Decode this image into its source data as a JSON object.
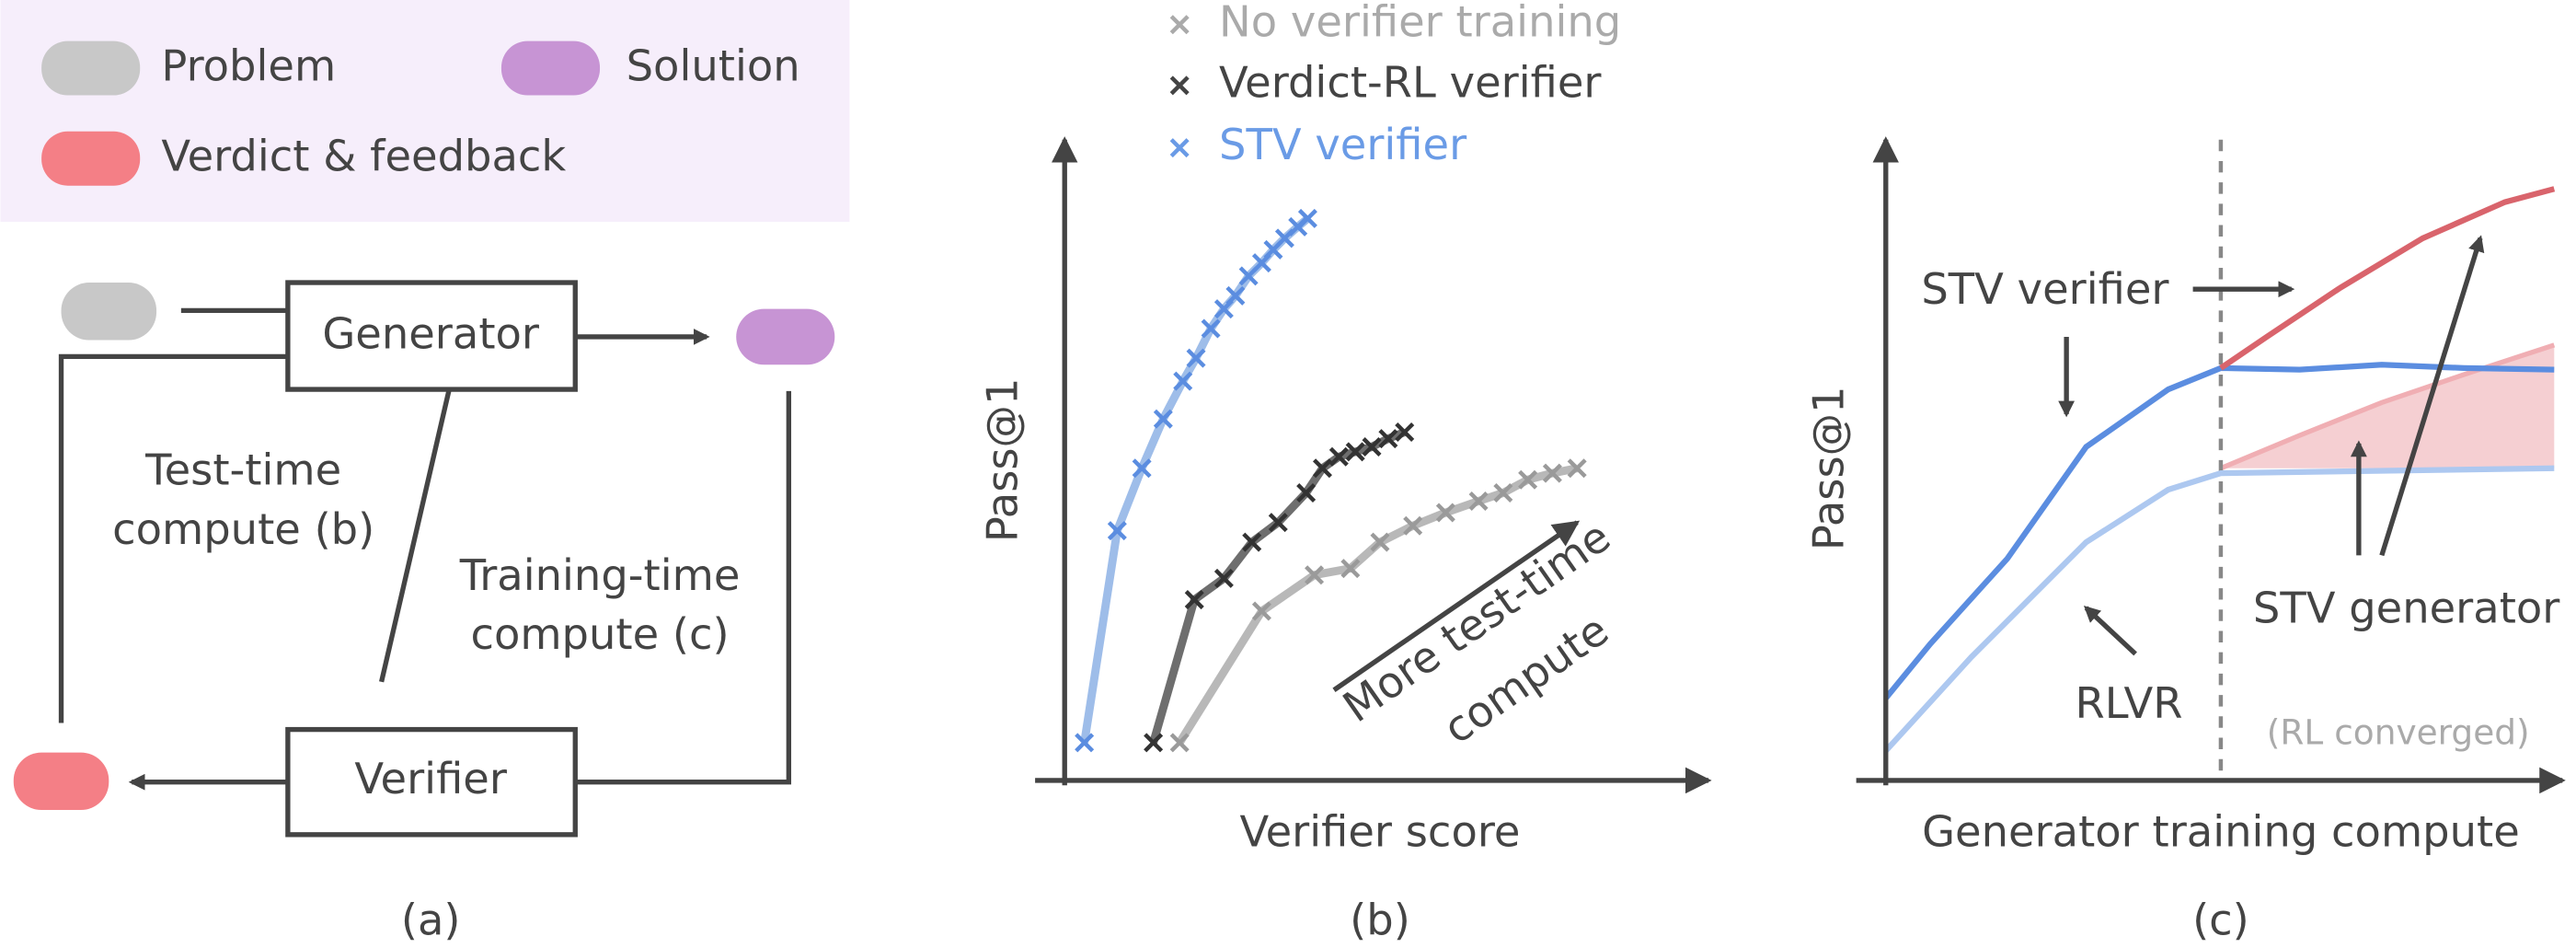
{
  "legend": {
    "problem": "Problem",
    "solution": "Solution",
    "verdict": "Verdict & feedback"
  },
  "panel_a": {
    "generator": "Generator",
    "verifier": "Verifier",
    "test_time": [
      "Test-time",
      "compute (b)"
    ],
    "training_time": [
      "Training-time",
      "compute (c)"
    ],
    "caption": "(a)"
  },
  "panel_b": {
    "y_label": "Pass@1",
    "x_label": "Verifier score",
    "legend": [
      "No verifier training",
      "Verdict-RL verifier",
      "STV verifier"
    ],
    "annotation": [
      "More test-time",
      "compute"
    ],
    "caption": "(b)"
  },
  "panel_c": {
    "y_label": "Pass@1",
    "x_label": "Generator training compute",
    "stv_verifier": "STV verifier",
    "rlvr": "RLVR",
    "stv_generator": "STV generator",
    "converged": "(RL converged)",
    "caption": "(c)"
  }
}
